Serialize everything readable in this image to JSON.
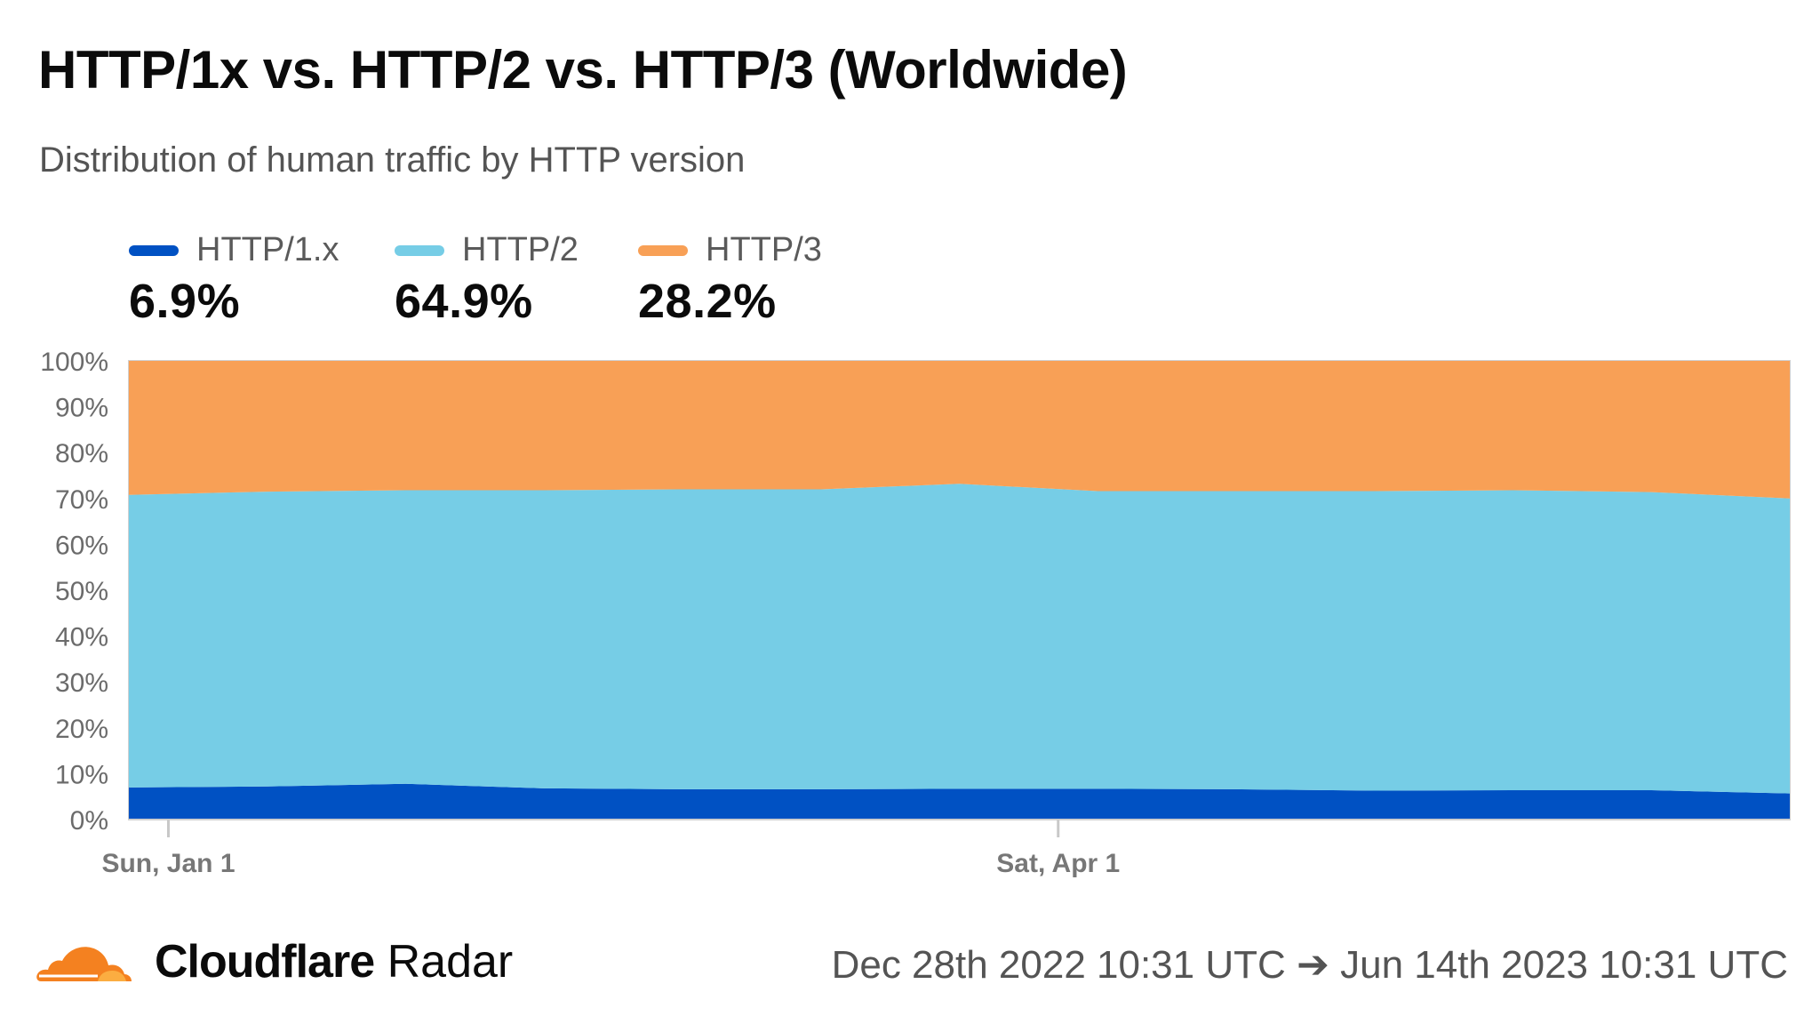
{
  "header": {
    "title": "HTTP/1x vs. HTTP/2 vs. HTTP/3 (Worldwide)",
    "subtitle": "Distribution of human traffic by HTTP version"
  },
  "legend": [
    {
      "label": "HTTP/1.x",
      "value": "6.9%",
      "color": "#0051c3"
    },
    {
      "label": "HTTP/2",
      "value": "64.9%",
      "color": "#76cde6"
    },
    {
      "label": "HTTP/3",
      "value": "28.2%",
      "color": "#f8a056"
    }
  ],
  "footer": {
    "brand_bold": "Cloudflare",
    "brand_regular": "Radar",
    "date_range": "Dec 28th 2022 10:31 UTC ➔ Jun 14th 2023 10:31 UTC"
  },
  "chart_data": {
    "type": "area",
    "stacked": true,
    "x": [
      "2022-12-28",
      "2023-01-11",
      "2023-01-25",
      "2023-02-08",
      "2023-02-22",
      "2023-03-08",
      "2023-03-22",
      "2023-04-05",
      "2023-04-19",
      "2023-05-03",
      "2023-05-17",
      "2023-05-31",
      "2023-06-14"
    ],
    "x_ticks": [
      {
        "date": "2023-01-01",
        "label": "Sun, Jan 1"
      },
      {
        "date": "2023-04-01",
        "label": "Sat, Apr 1"
      }
    ],
    "ylim": [
      0,
      100
    ],
    "y_ticks": [
      "0%",
      "10%",
      "20%",
      "30%",
      "40%",
      "50%",
      "60%",
      "70%",
      "80%",
      "90%",
      "100%"
    ],
    "grid": false,
    "series": [
      {
        "name": "HTTP/1.x",
        "color": "#0051c3",
        "values": [
          7.0,
          7.2,
          7.8,
          6.8,
          6.6,
          6.6,
          6.7,
          6.7,
          6.6,
          6.3,
          6.4,
          6.4,
          5.7
        ]
      },
      {
        "name": "HTTP/2",
        "color": "#76cde6",
        "values": [
          63.8,
          64.3,
          64.0,
          65.0,
          65.4,
          65.4,
          66.5,
          64.9,
          65.0,
          65.3,
          65.4,
          65.0,
          64.3
        ]
      },
      {
        "name": "HTTP/3",
        "color": "#f8a056",
        "values": [
          29.2,
          28.5,
          28.2,
          28.2,
          28.0,
          28.0,
          26.8,
          28.4,
          28.4,
          28.4,
          28.2,
          28.6,
          30.0
        ]
      }
    ]
  }
}
